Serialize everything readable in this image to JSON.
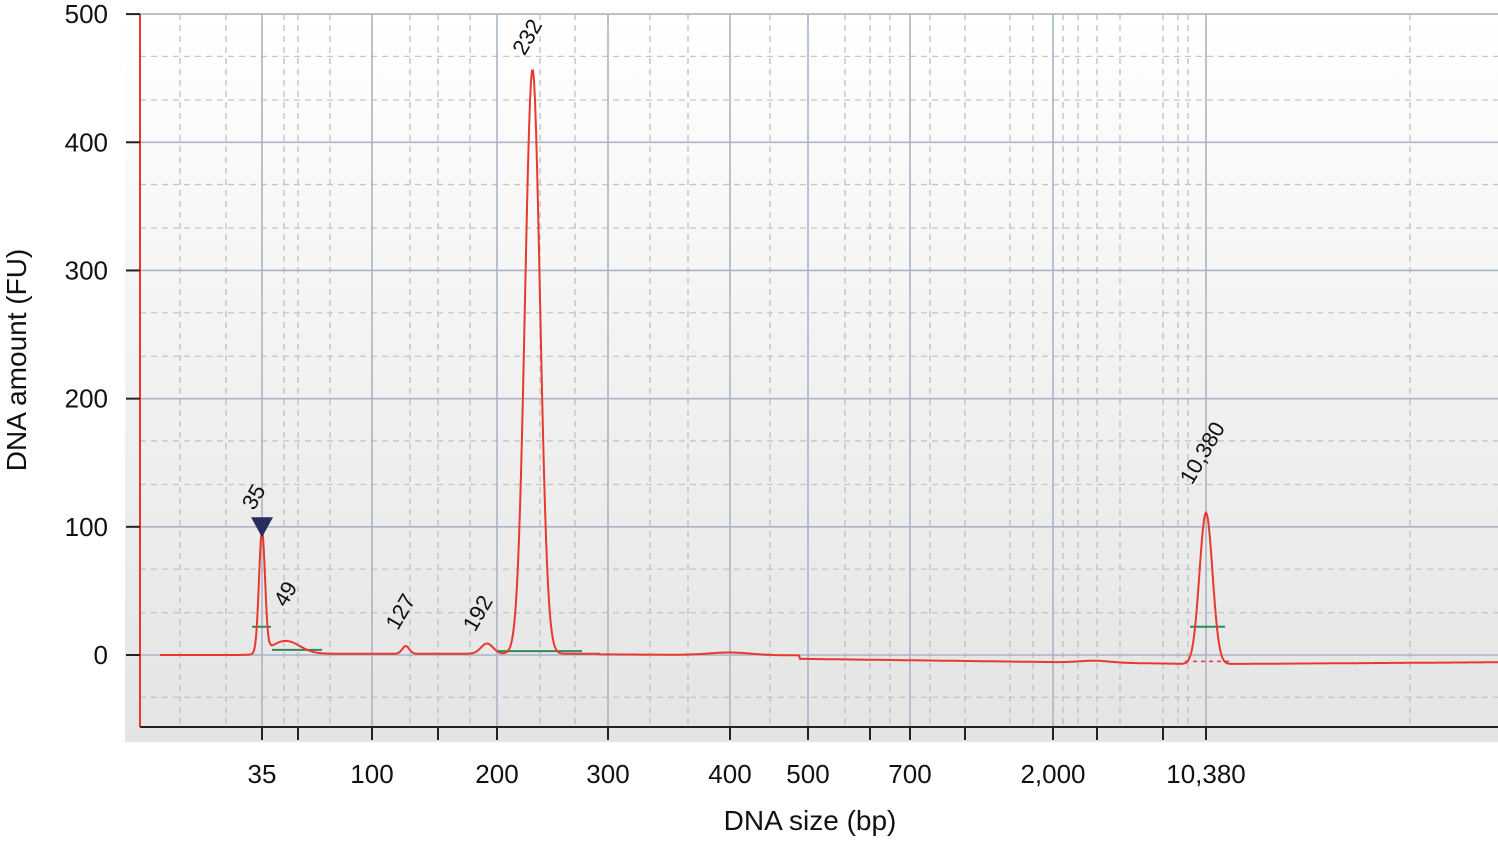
{
  "chart_data": {
    "type": "line",
    "title": "",
    "xlabel": "DNA size (bp)",
    "ylabel": "DNA amount (FU)",
    "ylim": [
      -55,
      505
    ],
    "y_ticks": [
      0,
      100,
      200,
      300,
      400,
      500
    ],
    "y_tick_labels": [
      "0",
      "100",
      "200",
      "300",
      "400",
      "500"
    ],
    "x_ticks": [
      35,
      100,
      200,
      300,
      400,
      500,
      700,
      2000,
      10380
    ],
    "x_tick_labels": [
      "35",
      "100",
      "200",
      "300",
      "400",
      "500",
      "700",
      "2,000",
      "10,380"
    ],
    "grid": true,
    "line_color": "#e8392f",
    "peaks": [
      {
        "label": "35",
        "size_bp": 35,
        "amount": 95
      },
      {
        "label": "49",
        "size_bp": 49,
        "amount": 10
      },
      {
        "label": "127",
        "size_bp": 127,
        "amount": 6
      },
      {
        "label": "192",
        "size_bp": 192,
        "amount": 8
      },
      {
        "label": "232",
        "size_bp": 232,
        "amount": 456
      },
      {
        "label": "10,380",
        "size_bp": 10380,
        "amount": 118
      }
    ]
  }
}
